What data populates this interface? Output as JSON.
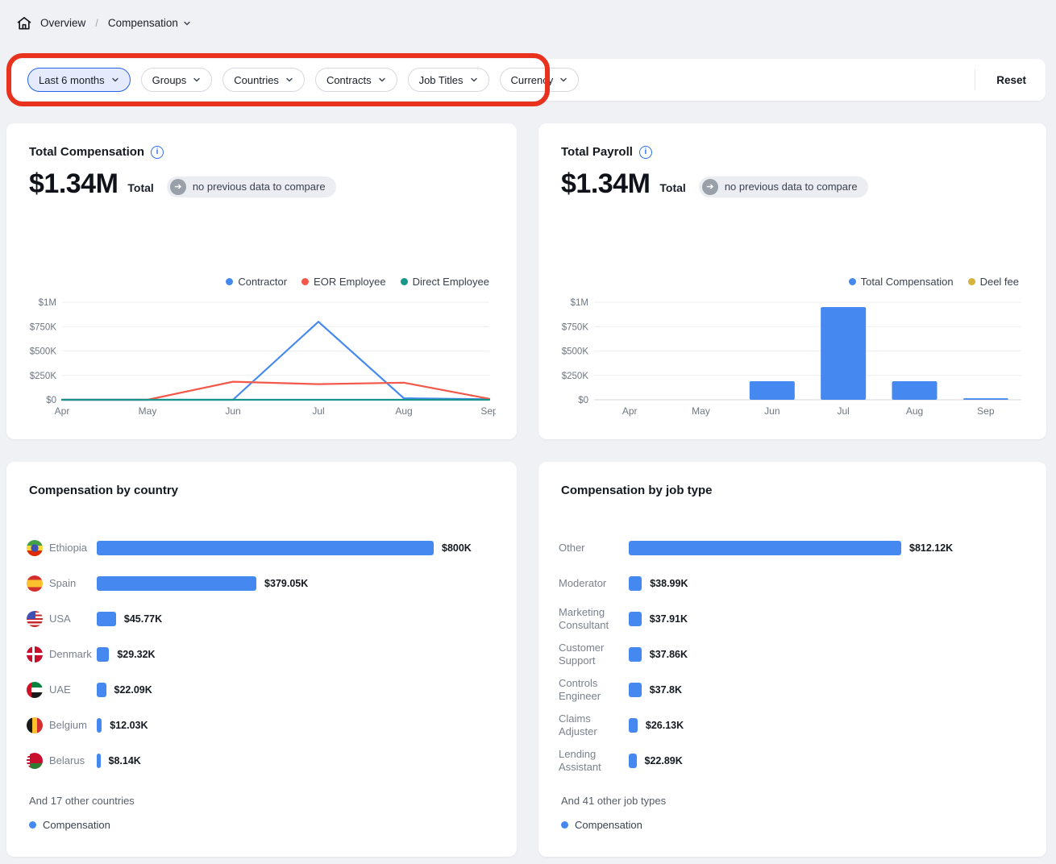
{
  "breadcrumb": {
    "overview": "Overview",
    "separator": "/",
    "current": "Compensation"
  },
  "filter_bar": {
    "pills": [
      {
        "label": "Last 6 months",
        "selected": true
      },
      {
        "label": "Groups",
        "selected": false
      },
      {
        "label": "Countries",
        "selected": false
      },
      {
        "label": "Contracts",
        "selected": false
      },
      {
        "label": "Job Titles",
        "selected": false
      },
      {
        "label": "Currency",
        "selected": false
      }
    ],
    "reset": "Reset",
    "annotation_color": "#E8321E"
  },
  "summary_cards": {
    "compensation": {
      "title": "Total Compensation",
      "amount": "$1.34M",
      "amount_label": "Total",
      "comparison_badge": "no previous data to compare"
    },
    "payroll": {
      "title": "Total Payroll",
      "amount": "$1.34M",
      "amount_label": "Total",
      "comparison_badge": "no previous data to compare"
    }
  },
  "colors": {
    "blue": "#4589F0",
    "red": "#F2594B",
    "teal": "#16958B",
    "yellow": "#D4B43C"
  },
  "chart_data": [
    {
      "id": "total-compensation-trend",
      "type": "line",
      "title": "Total Compensation",
      "x": [
        "Apr",
        "May",
        "Jun",
        "Jul",
        "Aug",
        "Sep"
      ],
      "unit": "USD thousands",
      "ylim": [
        0,
        1000
      ],
      "yticks": [
        {
          "v": 0,
          "label": "$0"
        },
        {
          "v": 250,
          "label": "$250K"
        },
        {
          "v": 500,
          "label": "$500K"
        },
        {
          "v": 750,
          "label": "$750K"
        },
        {
          "v": 1000,
          "label": "$1M"
        }
      ],
      "grid": true,
      "legend_position": "top-right",
      "series": [
        {
          "name": "Contractor",
          "color": "#4589F0",
          "values": [
            0,
            0,
            0,
            800,
            15,
            5
          ]
        },
        {
          "name": "EOR Employee",
          "color": "#F2594B",
          "values": [
            0,
            0,
            185,
            160,
            175,
            10
          ]
        },
        {
          "name": "Direct Employee",
          "color": "#16958B",
          "values": [
            0,
            0,
            0,
            0,
            0,
            0
          ]
        }
      ]
    },
    {
      "id": "total-payroll-by-month",
      "type": "bar",
      "title": "Total Payroll",
      "categories": [
        "Apr",
        "May",
        "Jun",
        "Jul",
        "Aug",
        "Sep"
      ],
      "unit": "USD thousands",
      "ylim": [
        0,
        1000
      ],
      "yticks": [
        {
          "v": 0,
          "label": "$0"
        },
        {
          "v": 250,
          "label": "$250K"
        },
        {
          "v": 500,
          "label": "$500K"
        },
        {
          "v": 750,
          "label": "$750K"
        },
        {
          "v": 1000,
          "label": "$1M"
        }
      ],
      "grid": true,
      "legend_position": "top-right",
      "series": [
        {
          "name": "Total Compensation",
          "color": "#4589F0",
          "values": [
            0,
            0,
            190,
            950,
            190,
            15
          ]
        },
        {
          "name": "Deel fee",
          "color": "#D4B43C",
          "values": [
            0,
            0,
            0,
            0,
            0,
            0
          ]
        }
      ]
    },
    {
      "id": "compensation-by-country",
      "type": "bar",
      "orientation": "horizontal",
      "title": "Compensation by country",
      "xlim": [
        0,
        800
      ],
      "legend_label": "Compensation",
      "footnote": "And 17 other countries",
      "rows": [
        {
          "flag": "ethiopia",
          "label": "Ethiopia",
          "value": 800,
          "value_label": "$800K"
        },
        {
          "flag": "spain",
          "label": "Spain",
          "value": 379.05,
          "value_label": "$379.05K"
        },
        {
          "flag": "usa",
          "label": "USA",
          "value": 45.77,
          "value_label": "$45.77K"
        },
        {
          "flag": "denmark",
          "label": "Denmark",
          "value": 29.32,
          "value_label": "$29.32K"
        },
        {
          "flag": "uae",
          "label": "UAE",
          "value": 22.09,
          "value_label": "$22.09K"
        },
        {
          "flag": "belgium",
          "label": "Belgium",
          "value": 12.03,
          "value_label": "$12.03K"
        },
        {
          "flag": "belarus",
          "label": "Belarus",
          "value": 8.14,
          "value_label": "$8.14K"
        }
      ]
    },
    {
      "id": "compensation-by-job-type",
      "type": "bar",
      "orientation": "horizontal",
      "title": "Compensation by job type",
      "xlim": [
        0,
        812.12
      ],
      "legend_label": "Compensation",
      "footnote": "And 41 other job types",
      "rows": [
        {
          "label": "Other",
          "value": 812.12,
          "value_label": "$812.12K"
        },
        {
          "label": "Moderator",
          "value": 38.99,
          "value_label": "$38.99K"
        },
        {
          "label": "Marketing Consultant",
          "value": 37.91,
          "value_label": "$37.91K"
        },
        {
          "label": "Customer Support",
          "value": 37.86,
          "value_label": "$37.86K"
        },
        {
          "label": "Controls Engineer",
          "value": 37.8,
          "value_label": "$37.8K"
        },
        {
          "label": "Claims Adjuster",
          "value": 26.13,
          "value_label": "$26.13K"
        },
        {
          "label": "Lending Assistant",
          "value": 22.89,
          "value_label": "$22.89K"
        }
      ]
    }
  ]
}
